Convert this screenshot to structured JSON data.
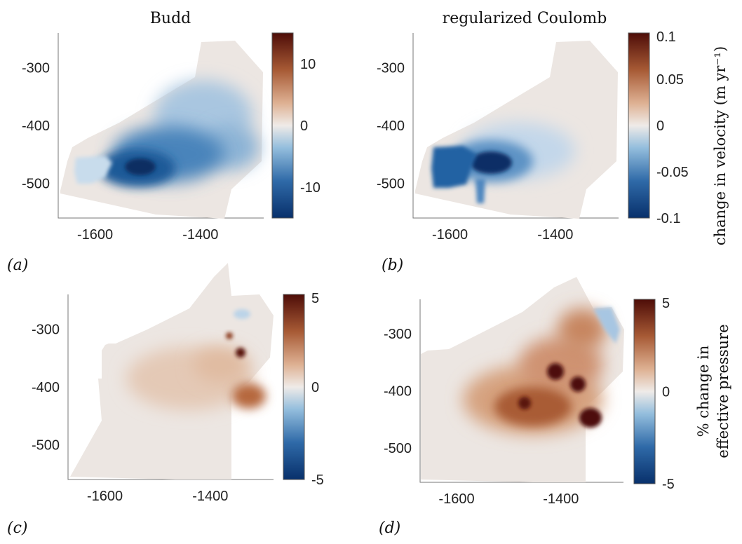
{
  "colors": {
    "neg_dark": "#08306b",
    "neg_mid": "#6fa7d1",
    "neutral": "#ece6e2",
    "pos_mid": "#c88a62",
    "pos_dark": "#4e0d08",
    "outline": "#777777"
  },
  "labels": {
    "title_a": "Budd",
    "title_b": "regularized Coulomb",
    "panel_a": "(a)",
    "panel_b": "(b)",
    "panel_c": "(c)",
    "panel_d": "(d)",
    "cbar_top_label": "change in velocity (m yr⁻¹)",
    "cbar_bottom_line1": "% change in",
    "cbar_bottom_line2": "effective pressure"
  },
  "chart_data": [
    {
      "type": "heatmap",
      "panel": "(a)",
      "title": "Budd",
      "x_ticks": [
        "-1600",
        "-1400"
      ],
      "y_ticks": [
        "-300",
        "-400",
        "-500"
      ],
      "xlim": [
        -1670,
        -1280
      ],
      "ylim": [
        -560,
        -240
      ],
      "colorbar": {
        "ticks": [
          "10",
          "0",
          "-10"
        ],
        "range": [
          -15,
          15
        ],
        "colormap": "blue-white-red (balance)"
      },
      "features": [
        {
          "kind": "strong velocity decrease",
          "x": -1520,
          "y": -470,
          "value": -15
        },
        {
          "kind": "broad velocity decrease",
          "x": -1430,
          "y": -420,
          "value": -8
        }
      ]
    },
    {
      "type": "heatmap",
      "panel": "(b)",
      "title": "regularized Coulomb",
      "x_ticks": [
        "-1600",
        "-1400"
      ],
      "y_ticks": [
        "-300",
        "-400",
        "-500"
      ],
      "xlim": [
        -1670,
        -1280
      ],
      "ylim": [
        -560,
        -240
      ],
      "colorbar": {
        "ticks": [
          "0.1",
          "0.05",
          "0",
          "-0.05",
          "-0.1"
        ],
        "range": [
          -0.1,
          0.1
        ],
        "colormap": "blue-white-red (balance)",
        "label": "change in velocity (m yr⁻¹)"
      },
      "features": [
        {
          "kind": "strong velocity decrease",
          "x": -1500,
          "y": -465,
          "value": -0.1
        },
        {
          "kind": "velocity decrease",
          "x": -1600,
          "y": -470,
          "value": -0.07
        }
      ]
    },
    {
      "type": "heatmap",
      "panel": "(c)",
      "x_ticks": [
        "-1600",
        "-1400"
      ],
      "y_ticks": [
        "-300",
        "-400",
        "-500"
      ],
      "xlim": [
        -1670,
        -1280
      ],
      "ylim": [
        -560,
        -240
      ],
      "colorbar": {
        "ticks": [
          "5",
          "0",
          "-5"
        ],
        "range": [
          -5,
          5
        ],
        "colormap": "blue-white-red (balance)"
      },
      "features": [
        {
          "kind": "pressure increase spot",
          "x": -1340,
          "y": -385,
          "value": 5
        },
        {
          "kind": "pressure increase spot",
          "x": -1370,
          "y": -357,
          "value": 4
        },
        {
          "kind": "pressure increase",
          "x": -1295,
          "y": -450,
          "value": 3
        }
      ]
    },
    {
      "type": "heatmap",
      "panel": "(d)",
      "x_ticks": [
        "-1600",
        "-1400"
      ],
      "y_ticks": [
        "-300",
        "-400",
        "-500"
      ],
      "xlim": [
        -1670,
        -1280
      ],
      "ylim": [
        -560,
        -240
      ],
      "colorbar": {
        "ticks": [
          "5",
          "0",
          "-5"
        ],
        "range": [
          -5,
          5
        ],
        "colormap": "blue-white-red (balance)",
        "label": "% change in effective pressure"
      },
      "features": [
        {
          "kind": "pressure increase spot",
          "x": -1385,
          "y": -365,
          "value": 5
        },
        {
          "kind": "pressure increase spot",
          "x": -1340,
          "y": -383,
          "value": 5
        },
        {
          "kind": "pressure increase spot",
          "x": -1300,
          "y": -450,
          "value": 5
        },
        {
          "kind": "broad pressure increase",
          "x": -1450,
          "y": -440,
          "value": 3
        }
      ]
    }
  ]
}
